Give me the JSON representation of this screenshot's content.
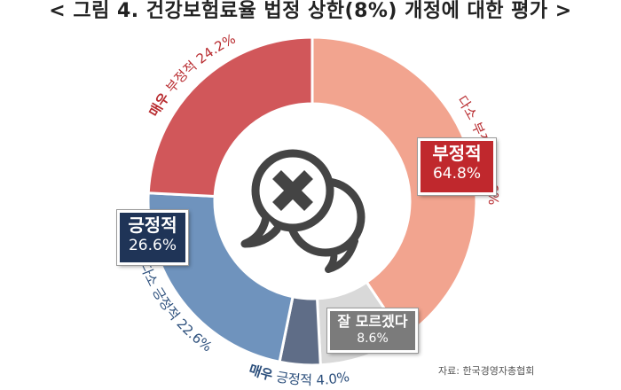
{
  "title": "< 그림 4. 건강보험료율 법정 상한(8%) 개정에 대한 평가 >",
  "source": "자료: 한국경영자총협회",
  "colors": {
    "very_negative": "#d1575a",
    "somewhat_negative": "#f2a48f",
    "unknown": "#d9d9d9",
    "very_positive": "#5f6d87",
    "somewhat_positive": "#6f93bd",
    "negative_label": "#b82b2f",
    "positive_label": "#2c4f7c",
    "icon": "#444444"
  },
  "chart_data": {
    "type": "pie",
    "donut": true,
    "slices": [
      {
        "label": "다소 부정적",
        "value": 40.6,
        "display": "다소 부정적 40.6%",
        "color": "#f2a48f"
      },
      {
        "label": "잘 모르겠다",
        "value": 8.6,
        "display": "8.6%",
        "color": "#d9d9d9"
      },
      {
        "label": "매우 긍정적",
        "value": 4.0,
        "display": "매우 긍정적 4.0%",
        "color": "#5f6d87"
      },
      {
        "label": "다소 긍정적",
        "value": 22.6,
        "display": "다소 긍정적 22.6%",
        "color": "#6f93bd"
      },
      {
        "label": "매우 부정적",
        "value": 24.2,
        "display": "매우 부정적 24.2%",
        "color": "#d1575a"
      }
    ],
    "groups": [
      {
        "label": "부정적",
        "value": "64.8%"
      },
      {
        "label": "긍정적",
        "value": "26.6%"
      },
      {
        "label": "잘 모르겠다",
        "value": "8.6%"
      }
    ],
    "center_icon": "speech-bubbles-x-icon"
  }
}
